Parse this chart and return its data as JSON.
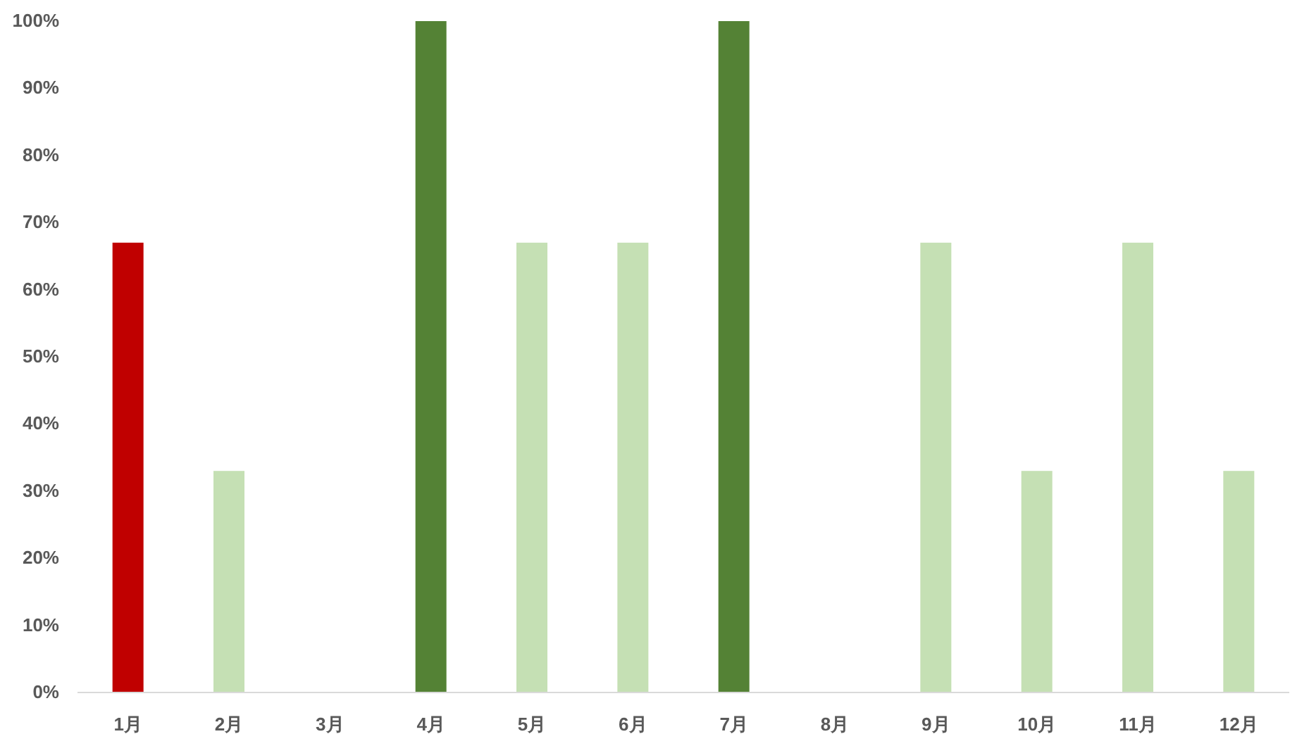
{
  "chart_data": {
    "type": "bar",
    "categories": [
      "1月",
      "2月",
      "3月",
      "4月",
      "5月",
      "6月",
      "7月",
      "8月",
      "9月",
      "10月",
      "11月",
      "12月"
    ],
    "values": [
      67,
      33,
      0,
      100,
      67,
      67,
      100,
      0,
      67,
      33,
      67,
      33
    ],
    "colors": [
      "#c00000",
      "#c5e0b4",
      "#c5e0b4",
      "#548235",
      "#c5e0b4",
      "#c5e0b4",
      "#548235",
      "#c5e0b4",
      "#c5e0b4",
      "#c5e0b4",
      "#c5e0b4",
      "#c5e0b4"
    ],
    "ylim": [
      0,
      100
    ],
    "yticks": [
      {
        "value": 0,
        "label": "0%"
      },
      {
        "value": 10,
        "label": "10%"
      },
      {
        "value": 20,
        "label": "20%"
      },
      {
        "value": 30,
        "label": "30%"
      },
      {
        "value": 40,
        "label": "40%"
      },
      {
        "value": 50,
        "label": "50%"
      },
      {
        "value": 60,
        "label": "60%"
      },
      {
        "value": 70,
        "label": "70%"
      },
      {
        "value": 80,
        "label": "80%"
      },
      {
        "value": 90,
        "label": "90%"
      },
      {
        "value": 100,
        "label": "100%"
      }
    ]
  }
}
